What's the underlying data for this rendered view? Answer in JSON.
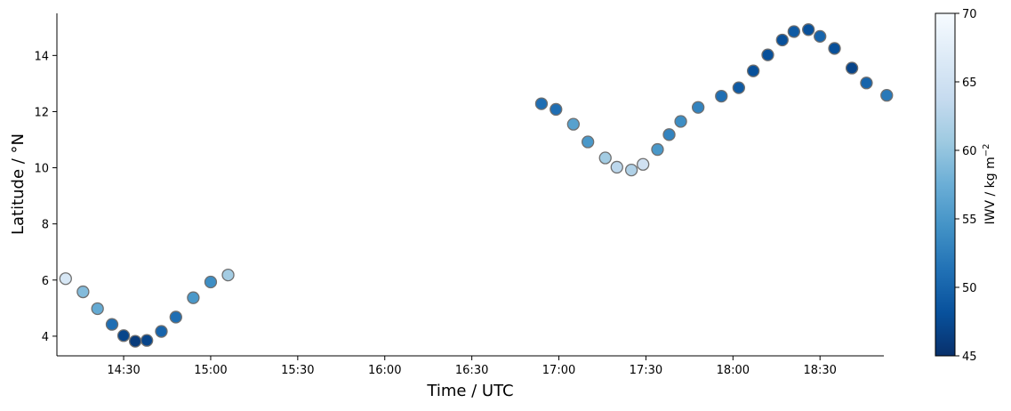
{
  "chart_data": {
    "type": "scatter",
    "xlabel": "Time / UTC",
    "ylabel": "Latitude / °N",
    "colorbar_label_main": "IWV / kg m",
    "colorbar_label_sup": "−2",
    "x_ticks": [
      "14:30",
      "15:00",
      "15:30",
      "16:00",
      "16:30",
      "17:00",
      "17:30",
      "18:00",
      "18:30"
    ],
    "x_tick_minutes": [
      870,
      900,
      930,
      960,
      990,
      1020,
      1050,
      1080,
      1110
    ],
    "xlim_minutes": [
      847,
      1132
    ],
    "y_ticks": [
      "4",
      "6",
      "8",
      "10",
      "12",
      "14"
    ],
    "y_tick_values": [
      4,
      6,
      8,
      10,
      12,
      14
    ],
    "ylim": [
      3.3,
      15.5
    ],
    "colorbar_ticks": [
      "45",
      "50",
      "55",
      "60",
      "65",
      "70"
    ],
    "colorbar_tick_values": [
      45,
      50,
      55,
      60,
      65,
      70
    ],
    "clim": [
      45,
      70
    ],
    "colormap": [
      "#08306b",
      "#08519c",
      "#2171b5",
      "#4292c6",
      "#6baed6",
      "#9ecae1",
      "#c6dbef",
      "#deebf7",
      "#f7fbff"
    ],
    "grid": false,
    "points": [
      {
        "t": "14:10",
        "lat": 6.05,
        "iwv": 66
      },
      {
        "t": "14:16",
        "lat": 5.58,
        "iwv": 59
      },
      {
        "t": "14:21",
        "lat": 4.98,
        "iwv": 57
      },
      {
        "t": "14:26",
        "lat": 4.42,
        "iwv": 51
      },
      {
        "t": "14:30",
        "lat": 4.02,
        "iwv": 47
      },
      {
        "t": "14:34",
        "lat": 3.82,
        "iwv": 46
      },
      {
        "t": "14:38",
        "lat": 3.85,
        "iwv": 47
      },
      {
        "t": "14:43",
        "lat": 4.17,
        "iwv": 50
      },
      {
        "t": "14:48",
        "lat": 4.68,
        "iwv": 51
      },
      {
        "t": "14:54",
        "lat": 5.37,
        "iwv": 55
      },
      {
        "t": "15:00",
        "lat": 5.93,
        "iwv": 54
      },
      {
        "t": "15:06",
        "lat": 6.18,
        "iwv": 61
      },
      {
        "t": "16:54",
        "lat": 12.28,
        "iwv": 51
      },
      {
        "t": "16:59",
        "lat": 12.08,
        "iwv": 51
      },
      {
        "t": "17:05",
        "lat": 11.55,
        "iwv": 56
      },
      {
        "t": "17:10",
        "lat": 10.92,
        "iwv": 55
      },
      {
        "t": "17:16",
        "lat": 10.35,
        "iwv": 61
      },
      {
        "t": "17:20",
        "lat": 10.02,
        "iwv": 63
      },
      {
        "t": "17:25",
        "lat": 9.92,
        "iwv": 62
      },
      {
        "t": "17:29",
        "lat": 10.12,
        "iwv": 65
      },
      {
        "t": "17:34",
        "lat": 10.65,
        "iwv": 55
      },
      {
        "t": "17:38",
        "lat": 11.18,
        "iwv": 53
      },
      {
        "t": "17:42",
        "lat": 11.65,
        "iwv": 54
      },
      {
        "t": "17:48",
        "lat": 12.15,
        "iwv": 53
      },
      {
        "t": "17:56",
        "lat": 12.55,
        "iwv": 51
      },
      {
        "t": "18:02",
        "lat": 12.85,
        "iwv": 49
      },
      {
        "t": "18:07",
        "lat": 13.45,
        "iwv": 48
      },
      {
        "t": "18:12",
        "lat": 14.02,
        "iwv": 48
      },
      {
        "t": "18:17",
        "lat": 14.55,
        "iwv": 48
      },
      {
        "t": "18:21",
        "lat": 14.85,
        "iwv": 49
      },
      {
        "t": "18:26",
        "lat": 14.92,
        "iwv": 48
      },
      {
        "t": "18:30",
        "lat": 14.68,
        "iwv": 50
      },
      {
        "t": "18:35",
        "lat": 14.25,
        "iwv": 48
      },
      {
        "t": "18:41",
        "lat": 13.55,
        "iwv": 47
      },
      {
        "t": "18:46",
        "lat": 13.02,
        "iwv": 50
      },
      {
        "t": "18:53",
        "lat": 12.58,
        "iwv": 52
      }
    ]
  }
}
